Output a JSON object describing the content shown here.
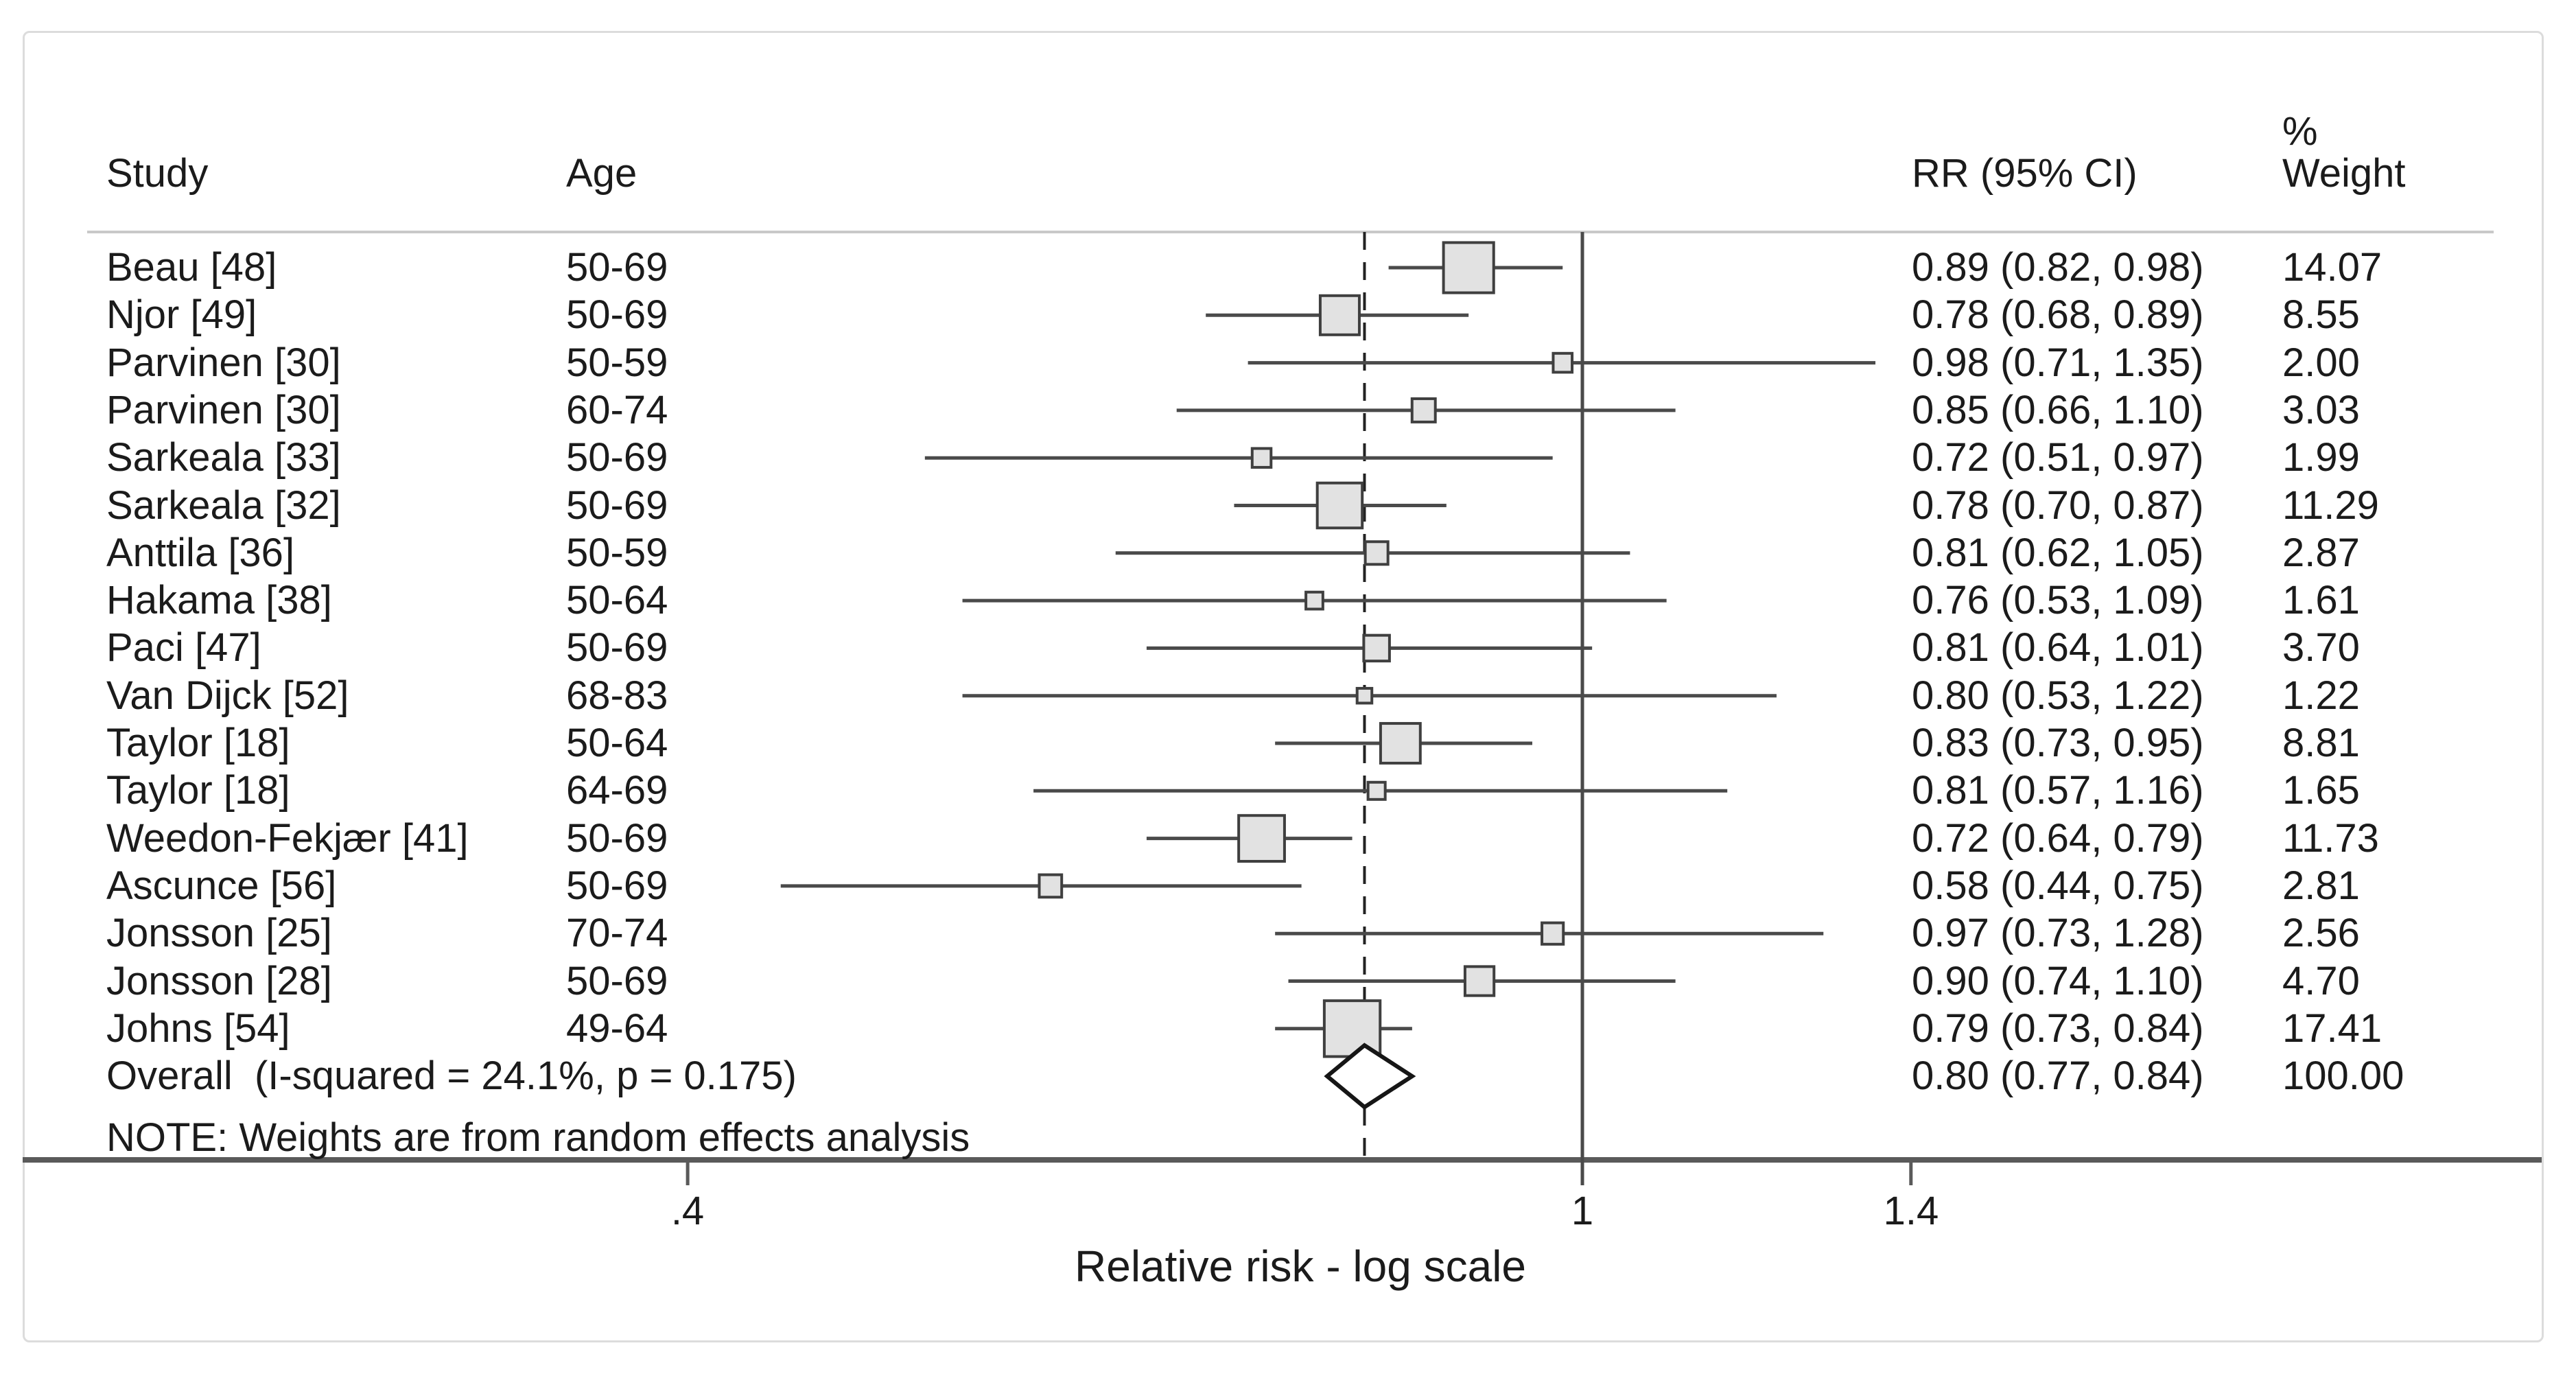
{
  "chart_data": {
    "type": "forest",
    "x_scale": "log",
    "columns": {
      "study": "Study",
      "age": "Age",
      "rr": "RR (95% CI)",
      "weight_pct": "%",
      "weight": "Weight"
    },
    "axis": {
      "title": "Relative risk - log scale",
      "null_value": 1,
      "ticks": [
        {
          "label": ".4",
          "value": 0.4
        },
        {
          "label": "1",
          "value": 1
        },
        {
          "label": "1.4",
          "value": 1.4
        }
      ]
    },
    "note": "NOTE: Weights are from random effects analysis",
    "studies": [
      {
        "study": "Beau [48]",
        "age": "50-69",
        "rr": 0.89,
        "lo": 0.82,
        "hi": 0.98,
        "weight": 14.07,
        "rr_text": "0.89 (0.82, 0.98)",
        "weight_text": "14.07"
      },
      {
        "study": "Njor [49]",
        "age": "50-69",
        "rr": 0.78,
        "lo": 0.68,
        "hi": 0.89,
        "weight": 8.55,
        "rr_text": "0.78 (0.68, 0.89)",
        "weight_text": "8.55"
      },
      {
        "study": "Parvinen [30]",
        "age": "50-59",
        "rr": 0.98,
        "lo": 0.71,
        "hi": 1.35,
        "weight": 2.0,
        "rr_text": "0.98 (0.71, 1.35)",
        "weight_text": "2.00"
      },
      {
        "study": "Parvinen [30]",
        "age": "60-74",
        "rr": 0.85,
        "lo": 0.66,
        "hi": 1.1,
        "weight": 3.03,
        "rr_text": "0.85 (0.66, 1.10)",
        "weight_text": "3.03"
      },
      {
        "study": "Sarkeala [33]",
        "age": "50-69",
        "rr": 0.72,
        "lo": 0.51,
        "hi": 0.97,
        "weight": 1.99,
        "rr_text": "0.72 (0.51, 0.97)",
        "weight_text": "1.99"
      },
      {
        "study": "Sarkeala [32]",
        "age": "50-69",
        "rr": 0.78,
        "lo": 0.7,
        "hi": 0.87,
        "weight": 11.29,
        "rr_text": "0.78 (0.70, 0.87)",
        "weight_text": "11.29"
      },
      {
        "study": "Anttila [36]",
        "age": "50-59",
        "rr": 0.81,
        "lo": 0.62,
        "hi": 1.05,
        "weight": 2.87,
        "rr_text": "0.81 (0.62, 1.05)",
        "weight_text": "2.87"
      },
      {
        "study": "Hakama [38]",
        "age": "50-64",
        "rr": 0.76,
        "lo": 0.53,
        "hi": 1.09,
        "weight": 1.61,
        "rr_text": "0.76 (0.53, 1.09)",
        "weight_text": "1.61"
      },
      {
        "study": "Paci [47]",
        "age": "50-69",
        "rr": 0.81,
        "lo": 0.64,
        "hi": 1.01,
        "weight": 3.7,
        "rr_text": "0.81 (0.64, 1.01)",
        "weight_text": "3.70"
      },
      {
        "study": "Van Dijck [52]",
        "age": "68-83",
        "rr": 0.8,
        "lo": 0.53,
        "hi": 1.22,
        "weight": 1.22,
        "rr_text": "0.80 (0.53, 1.22)",
        "weight_text": "1.22"
      },
      {
        "study": "Taylor [18]",
        "age": "50-64",
        "rr": 0.83,
        "lo": 0.73,
        "hi": 0.95,
        "weight": 8.81,
        "rr_text": "0.83 (0.73, 0.95)",
        "weight_text": "8.81"
      },
      {
        "study": "Taylor [18]",
        "age": "64-69",
        "rr": 0.81,
        "lo": 0.57,
        "hi": 1.16,
        "weight": 1.65,
        "rr_text": "0.81 (0.57, 1.16)",
        "weight_text": "1.65"
      },
      {
        "study": "Weedon-Fekjær [41]",
        "age": "50-69",
        "rr": 0.72,
        "lo": 0.64,
        "hi": 0.79,
        "weight": 11.73,
        "rr_text": "0.72 (0.64, 0.79)",
        "weight_text": "11.73"
      },
      {
        "study": "Ascunce [56]",
        "age": "50-69",
        "rr": 0.58,
        "lo": 0.44,
        "hi": 0.75,
        "weight": 2.81,
        "rr_text": "0.58 (0.44, 0.75)",
        "weight_text": "2.81"
      },
      {
        "study": "Jonsson [25]",
        "age": "70-74",
        "rr": 0.97,
        "lo": 0.73,
        "hi": 1.28,
        "weight": 2.56,
        "rr_text": "0.97 (0.73, 1.28)",
        "weight_text": "2.56"
      },
      {
        "study": "Jonsson [28]",
        "age": "50-69",
        "rr": 0.9,
        "lo": 0.74,
        "hi": 1.1,
        "weight": 4.7,
        "rr_text": "0.90 (0.74, 1.10)",
        "weight_text": "4.70"
      },
      {
        "study": "Johns [54]",
        "age": "49-64",
        "rr": 0.79,
        "lo": 0.73,
        "hi": 0.84,
        "weight": 17.41,
        "rr_text": "0.79 (0.73, 0.84)",
        "weight_text": "17.41"
      }
    ],
    "overall": {
      "label": "Overall  (I-squared = 24.1%, p = 0.175)",
      "rr": 0.8,
      "lo": 0.77,
      "hi": 0.84,
      "rr_text": "0.80 (0.77, 0.84)",
      "weight_text": "100.00"
    },
    "colors": {
      "square_fill": "#e2e2e2",
      "square_stroke": "#3f3f3f",
      "ci_line": "#4a4a4a",
      "null_line": "#4a4a4a",
      "pooled_dashed": "#222222",
      "axis_line": "#5a5a5a",
      "separator": "#c9c9c9",
      "border": "#dcdcdc",
      "text": "#1b1b1b"
    }
  }
}
